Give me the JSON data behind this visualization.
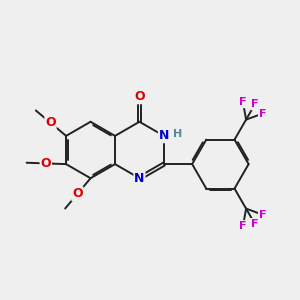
{
  "bg_color": "#efefef",
  "bond_color": "#222222",
  "bond_lw": 1.4,
  "dbo": 0.055,
  "atom_colors": {
    "O": "#dd0000",
    "N": "#0000cc",
    "H": "#558899",
    "F": "#cc00cc",
    "C": "#222222"
  },
  "L": 0.95,
  "bcx": 3.2,
  "bcy": 5.3,
  "xlim": [
    0.2,
    10.2
  ],
  "ylim": [
    0.8,
    9.8
  ]
}
